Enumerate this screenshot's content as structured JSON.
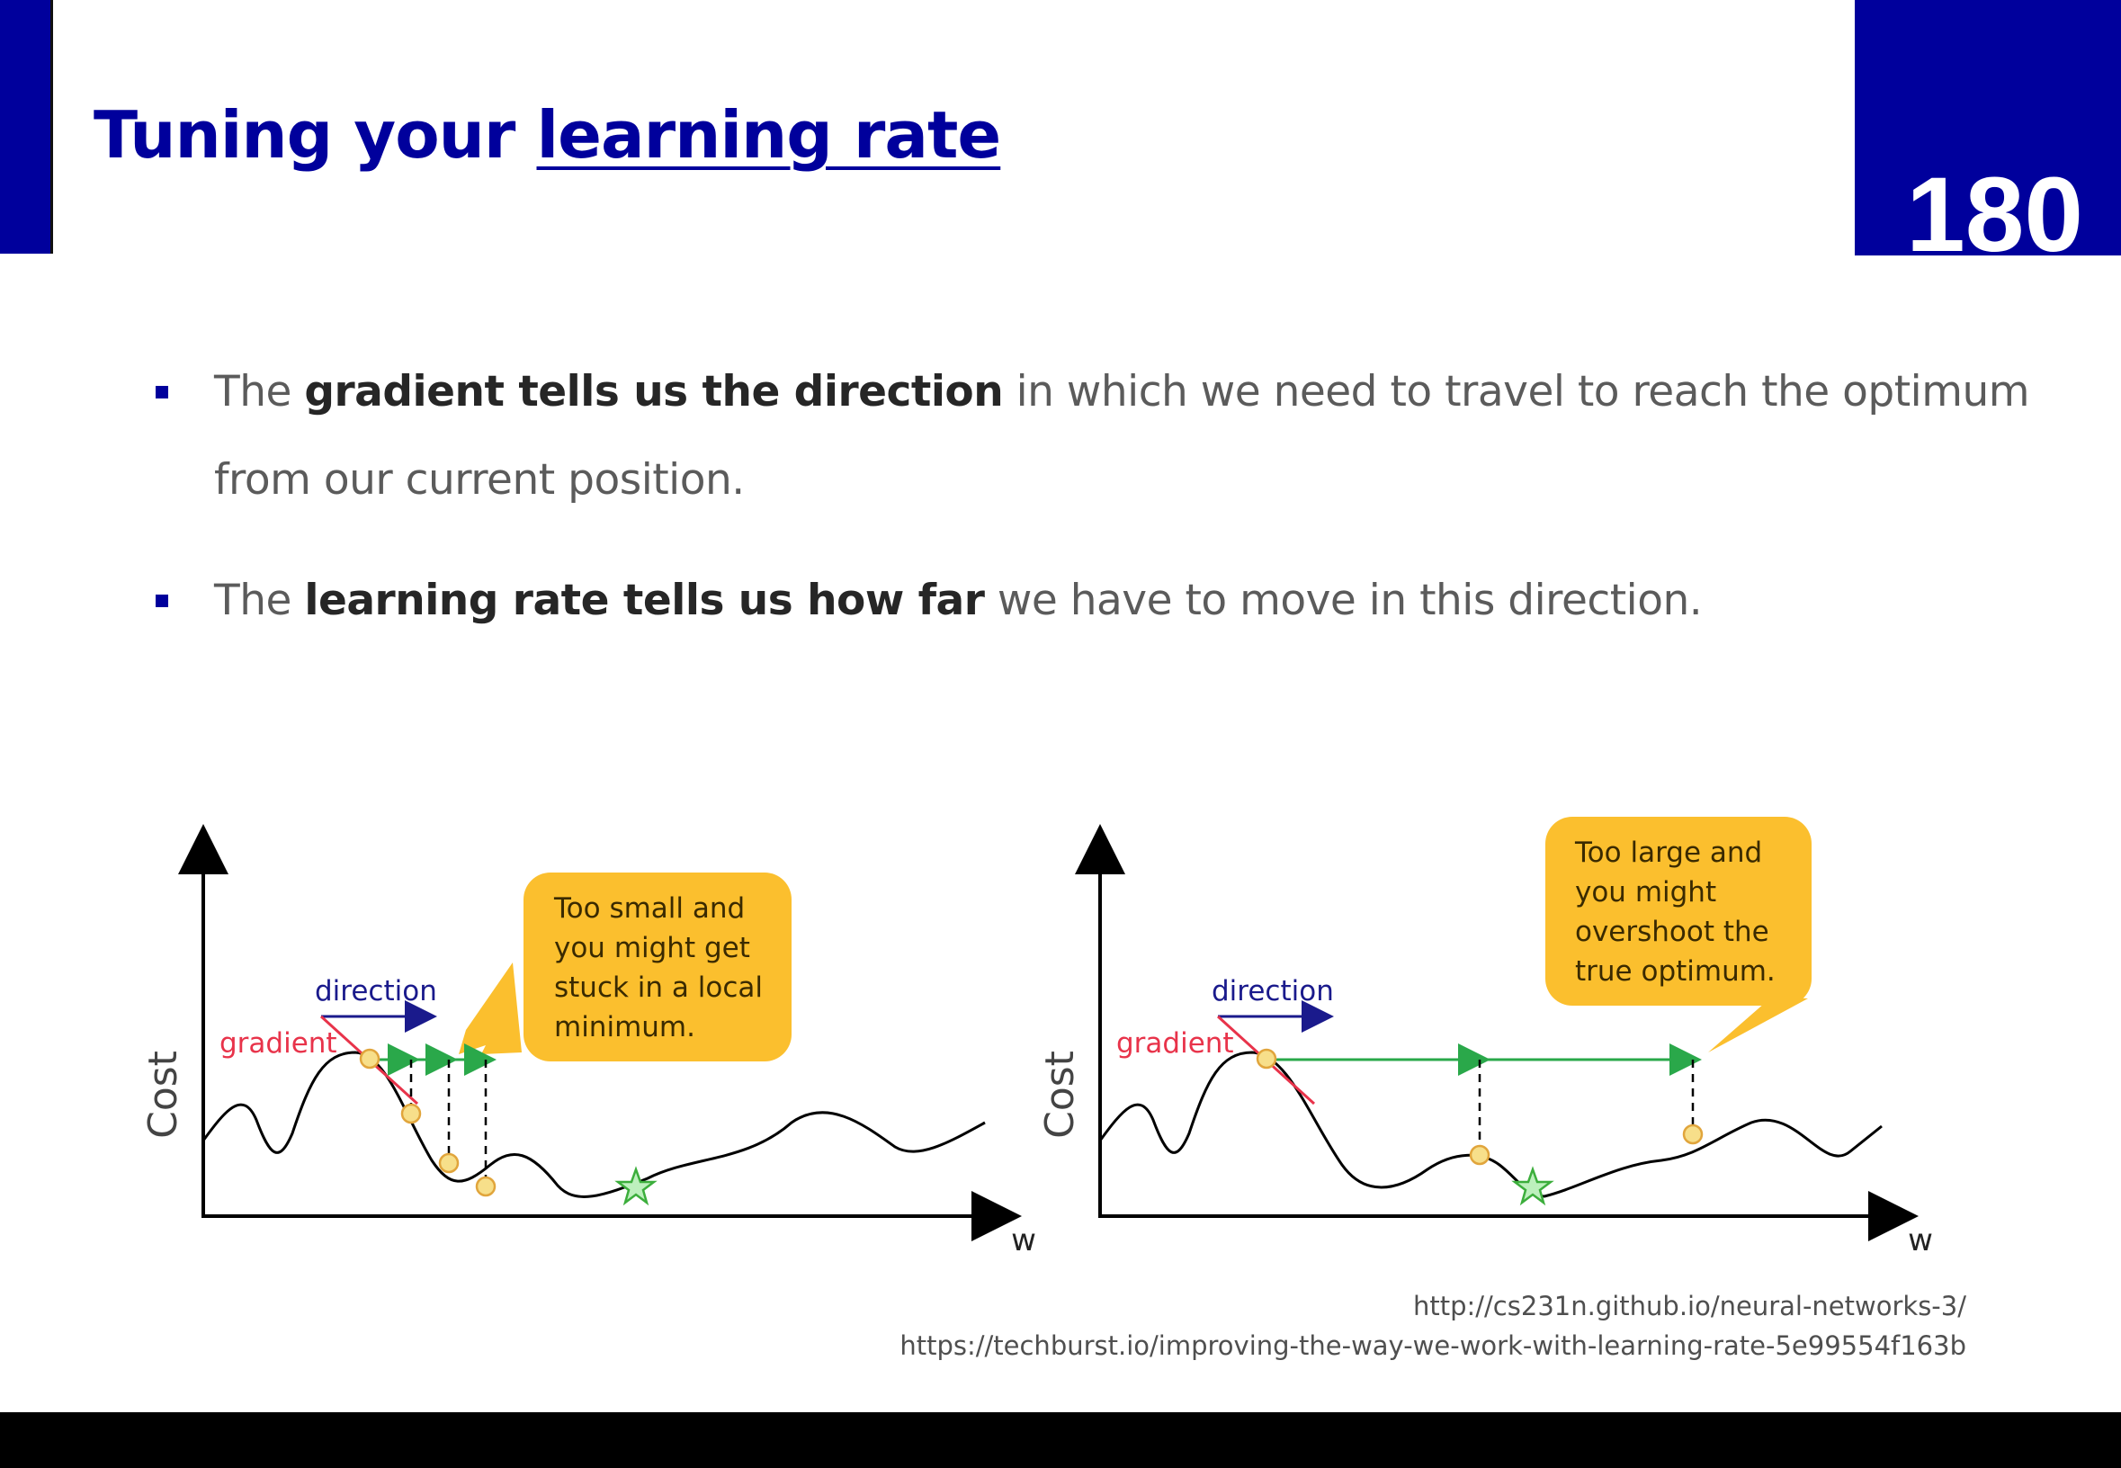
{
  "slide": {
    "title_plain": "Tuning your ",
    "title_link": "learning rate",
    "page_number": "180",
    "accent_color": "#00009c"
  },
  "bullets": [
    {
      "text_before": "The ",
      "bold": "gradient tells us the direction",
      "text_after": " in which we need to travel to reach the optimum",
      "continuation": "from our current position."
    },
    {
      "text_before": "The ",
      "bold": "learning rate tells us how far",
      "text_after": " we have to move in this direction."
    }
  ],
  "diagrams": [
    {
      "y_label": "Cost",
      "x_label": "w",
      "direction_label": "direction",
      "gradient_label": "gradient",
      "callout": [
        "Too small and",
        "you might get",
        "stuck in a local",
        "minimum."
      ]
    },
    {
      "y_label": "Cost",
      "x_label": "w",
      "direction_label": "direction",
      "gradient_label": "gradient",
      "callout": [
        "Too large and",
        "you might",
        "overshoot the",
        "true optimum."
      ]
    }
  ],
  "colors": {
    "direction": "#1a1a8c",
    "gradient": "#e8334a",
    "step": "#2aa84a",
    "point": "#f7df8a",
    "callout": "#fbbf2e",
    "star": "#8fd88f"
  },
  "sources": [
    "http://cs231n.github.io/neural-networks-3/",
    "https://techburst.io/improving-the-way-we-work-with-learning-rate-5e99554f163b"
  ]
}
